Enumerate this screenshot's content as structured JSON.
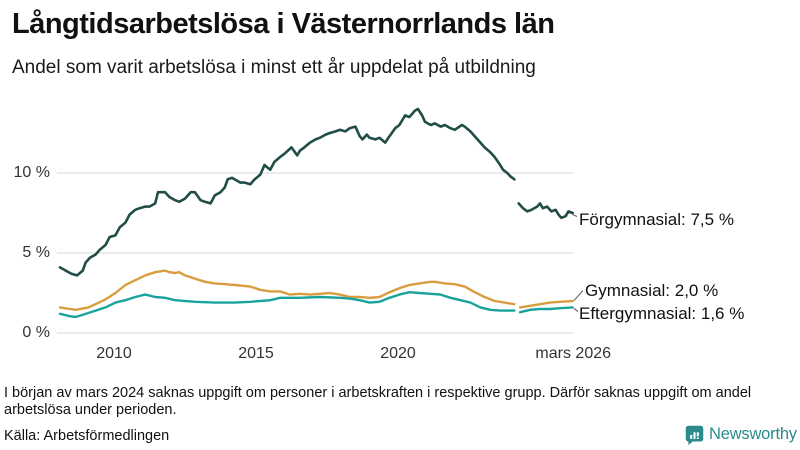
{
  "header": {
    "title": "Långtidsarbetslösa i Västernorrlands län",
    "subtitle": "Andel som varit arbetslösa i minst ett år uppdelat på utbildning"
  },
  "chart_data": {
    "type": "line",
    "title": "Långtidsarbetslösa i Västernorrlands län",
    "subtitle": "Andel som varit arbetslösa i minst ett år uppdelat på utbildning",
    "unit": "%",
    "x_axis": {
      "ticks": [
        {
          "label": "2010",
          "year": 2010.0
        },
        {
          "label": "2015",
          "year": 2015.0
        },
        {
          "label": "2020",
          "year": 2020.0
        },
        {
          "label": "mars 2026",
          "year": 2026.17
        }
      ],
      "range_years": [
        2008.0,
        2026.2
      ]
    },
    "y_axis": {
      "ticks": [
        {
          "label": "10 %",
          "value": 10
        },
        {
          "label": "5 %",
          "value": 5
        },
        {
          "label": "0 %",
          "value": 0
        }
      ],
      "range": [
        0,
        14.6
      ],
      "grid": true
    },
    "data_gap": "early 2024 (missing data)",
    "series": [
      {
        "name": "Förgymnasial",
        "label": "Förgymnasial: 7,5 %",
        "end_value": "7,5 %",
        "color": "#214d48",
        "stroke_width": 2.6,
        "segments": [
          [
            [
              2008.1,
              4.1
            ],
            [
              2008.3,
              3.9
            ],
            [
              2008.5,
              3.7
            ],
            [
              2008.7,
              3.6
            ],
            [
              2008.9,
              3.9
            ],
            [
              2009.0,
              4.4
            ],
            [
              2009.15,
              4.7
            ],
            [
              2009.35,
              4.9
            ],
            [
              2009.5,
              5.2
            ],
            [
              2009.7,
              5.5
            ],
            [
              2009.85,
              6.0
            ],
            [
              2010.05,
              6.1
            ],
            [
              2010.2,
              6.6
            ],
            [
              2010.4,
              6.9
            ],
            [
              2010.55,
              7.4
            ],
            [
              2010.75,
              7.7
            ],
            [
              2010.9,
              7.8
            ],
            [
              2011.1,
              7.9
            ],
            [
              2011.25,
              7.9
            ],
            [
              2011.45,
              8.1
            ],
            [
              2011.55,
              8.8
            ],
            [
              2011.8,
              8.8
            ],
            [
              2011.95,
              8.5
            ],
            [
              2012.15,
              8.3
            ],
            [
              2012.3,
              8.2
            ],
            [
              2012.5,
              8.4
            ],
            [
              2012.7,
              8.8
            ],
            [
              2012.85,
              8.8
            ],
            [
              2013.05,
              8.3
            ],
            [
              2013.2,
              8.2
            ],
            [
              2013.4,
              8.1
            ],
            [
              2013.55,
              8.6
            ],
            [
              2013.75,
              8.8
            ],
            [
              2013.9,
              9.1
            ],
            [
              2014.0,
              9.6
            ],
            [
              2014.15,
              9.7
            ],
            [
              2014.45,
              9.4
            ],
            [
              2014.6,
              9.4
            ],
            [
              2014.8,
              9.3
            ],
            [
              2014.95,
              9.6
            ],
            [
              2015.15,
              9.9
            ],
            [
              2015.3,
              10.5
            ],
            [
              2015.5,
              10.2
            ],
            [
              2015.65,
              10.7
            ],
            [
              2015.85,
              11.0
            ],
            [
              2016.0,
              11.2
            ],
            [
              2016.25,
              11.6
            ],
            [
              2016.45,
              11.1
            ],
            [
              2016.55,
              11.4
            ],
            [
              2016.7,
              11.6
            ],
            [
              2016.9,
              11.9
            ],
            [
              2017.1,
              12.1
            ],
            [
              2017.25,
              12.2
            ],
            [
              2017.45,
              12.4
            ],
            [
              2017.6,
              12.5
            ],
            [
              2017.8,
              12.6
            ],
            [
              2017.95,
              12.7
            ],
            [
              2018.15,
              12.6
            ],
            [
              2018.3,
              12.8
            ],
            [
              2018.5,
              12.9
            ],
            [
              2018.65,
              12.3
            ],
            [
              2018.75,
              12.1
            ],
            [
              2018.9,
              12.4
            ],
            [
              2019.0,
              12.2
            ],
            [
              2019.2,
              12.1
            ],
            [
              2019.35,
              12.2
            ],
            [
              2019.55,
              11.9
            ],
            [
              2019.7,
              12.3
            ],
            [
              2019.9,
              12.8
            ],
            [
              2020.05,
              13.0
            ],
            [
              2020.25,
              13.6
            ],
            [
              2020.4,
              13.5
            ],
            [
              2020.6,
              13.9
            ],
            [
              2020.7,
              14.0
            ],
            [
              2020.85,
              13.6
            ],
            [
              2020.95,
              13.2
            ],
            [
              2021.15,
              13.0
            ],
            [
              2021.3,
              13.1
            ],
            [
              2021.5,
              12.9
            ],
            [
              2021.65,
              13.0
            ],
            [
              2021.85,
              12.8
            ],
            [
              2022.0,
              12.7
            ],
            [
              2022.25,
              13.0
            ],
            [
              2022.35,
              12.9
            ],
            [
              2022.55,
              12.6
            ],
            [
              2022.7,
              12.3
            ],
            [
              2022.9,
              11.9
            ],
            [
              2023.05,
              11.6
            ],
            [
              2023.25,
              11.3
            ],
            [
              2023.4,
              11.0
            ],
            [
              2023.6,
              10.5
            ],
            [
              2023.7,
              10.2
            ],
            [
              2023.85,
              10.0
            ],
            [
              2023.95,
              9.8
            ],
            [
              2024.1,
              9.6
            ]
          ],
          [
            [
              2024.25,
              8.1
            ],
            [
              2024.4,
              7.8
            ],
            [
              2024.55,
              7.6
            ],
            [
              2024.7,
              7.7
            ],
            [
              2024.9,
              7.9
            ],
            [
              2025.0,
              8.1
            ],
            [
              2025.1,
              7.8
            ],
            [
              2025.25,
              7.9
            ],
            [
              2025.4,
              7.6
            ],
            [
              2025.55,
              7.7
            ],
            [
              2025.65,
              7.4
            ],
            [
              2025.75,
              7.2
            ],
            [
              2025.9,
              7.3
            ],
            [
              2026.0,
              7.6
            ],
            [
              2026.15,
              7.5
            ]
          ]
        ]
      },
      {
        "name": "Gymnasial",
        "label": "Gymnasial: 2,0 %",
        "end_value": "2,0 %",
        "color": "#d99c3e",
        "stroke_width": 2.4,
        "segments": [
          [
            [
              2008.1,
              1.6
            ],
            [
              2008.45,
              1.5
            ],
            [
              2008.65,
              1.45
            ],
            [
              2009.1,
              1.6
            ],
            [
              2009.35,
              1.8
            ],
            [
              2009.7,
              2.1
            ],
            [
              2010.05,
              2.5
            ],
            [
              2010.4,
              3.0
            ],
            [
              2010.75,
              3.3
            ],
            [
              2011.1,
              3.6
            ],
            [
              2011.45,
              3.8
            ],
            [
              2011.8,
              3.9
            ],
            [
              2011.95,
              3.8
            ],
            [
              2012.15,
              3.75
            ],
            [
              2012.3,
              3.8
            ],
            [
              2012.5,
              3.6
            ],
            [
              2012.85,
              3.4
            ],
            [
              2013.2,
              3.2
            ],
            [
              2013.55,
              3.1
            ],
            [
              2013.9,
              3.05
            ],
            [
              2014.25,
              3.0
            ],
            [
              2014.8,
              2.9
            ],
            [
              2015.15,
              2.7
            ],
            [
              2015.5,
              2.6
            ],
            [
              2015.85,
              2.6
            ],
            [
              2016.2,
              2.4
            ],
            [
              2016.55,
              2.45
            ],
            [
              2016.9,
              2.4
            ],
            [
              2017.25,
              2.45
            ],
            [
              2017.6,
              2.5
            ],
            [
              2017.95,
              2.4
            ],
            [
              2018.3,
              2.25
            ],
            [
              2018.65,
              2.25
            ],
            [
              2019.0,
              2.2
            ],
            [
              2019.35,
              2.25
            ],
            [
              2019.7,
              2.55
            ],
            [
              2020.05,
              2.8
            ],
            [
              2020.4,
              3.0
            ],
            [
              2020.75,
              3.1
            ],
            [
              2021.15,
              3.2
            ],
            [
              2021.3,
              3.2
            ],
            [
              2021.65,
              3.1
            ],
            [
              2022.0,
              3.05
            ],
            [
              2022.35,
              2.9
            ],
            [
              2022.7,
              2.55
            ],
            [
              2023.05,
              2.25
            ],
            [
              2023.4,
              2.0
            ],
            [
              2023.75,
              1.9
            ],
            [
              2024.1,
              1.8
            ]
          ],
          [
            [
              2024.3,
              1.6
            ],
            [
              2024.65,
              1.7
            ],
            [
              2025.0,
              1.8
            ],
            [
              2025.35,
              1.9
            ],
            [
              2025.7,
              1.95
            ],
            [
              2026.15,
              2.0
            ]
          ]
        ]
      },
      {
        "name": "Eftergymnasial",
        "label": "Eftergymnasial: 1,6 %",
        "end_value": "1,6 %",
        "color": "#1aa39c",
        "stroke_width": 2.4,
        "segments": [
          [
            [
              2008.1,
              1.2
            ],
            [
              2008.45,
              1.05
            ],
            [
              2008.65,
              1.0
            ],
            [
              2009.1,
              1.25
            ],
            [
              2009.35,
              1.4
            ],
            [
              2009.7,
              1.6
            ],
            [
              2010.05,
              1.9
            ],
            [
              2010.4,
              2.05
            ],
            [
              2010.75,
              2.25
            ],
            [
              2011.1,
              2.4
            ],
            [
              2011.45,
              2.25
            ],
            [
              2011.8,
              2.2
            ],
            [
              2012.15,
              2.05
            ],
            [
              2012.85,
              1.95
            ],
            [
              2013.55,
              1.9
            ],
            [
              2014.25,
              1.9
            ],
            [
              2014.8,
              1.95
            ],
            [
              2015.5,
              2.05
            ],
            [
              2015.85,
              2.2
            ],
            [
              2016.55,
              2.2
            ],
            [
              2017.25,
              2.25
            ],
            [
              2017.95,
              2.2
            ],
            [
              2018.3,
              2.15
            ],
            [
              2018.65,
              2.05
            ],
            [
              2019.0,
              1.9
            ],
            [
              2019.35,
              1.95
            ],
            [
              2019.7,
              2.2
            ],
            [
              2020.05,
              2.4
            ],
            [
              2020.4,
              2.55
            ],
            [
              2020.75,
              2.5
            ],
            [
              2021.15,
              2.45
            ],
            [
              2021.5,
              2.4
            ],
            [
              2021.85,
              2.2
            ],
            [
              2022.2,
              2.05
            ],
            [
              2022.55,
              1.9
            ],
            [
              2022.9,
              1.6
            ],
            [
              2023.25,
              1.45
            ],
            [
              2023.6,
              1.4
            ],
            [
              2023.95,
              1.4
            ],
            [
              2024.1,
              1.4
            ]
          ],
          [
            [
              2024.3,
              1.3
            ],
            [
              2024.65,
              1.45
            ],
            [
              2025.0,
              1.5
            ],
            [
              2025.35,
              1.5
            ],
            [
              2025.7,
              1.55
            ],
            [
              2026.15,
              1.6
            ]
          ]
        ]
      }
    ],
    "legend_position": "end-of-line labels, right side"
  },
  "footer": {
    "note": "I början av mars 2024 saknas uppgift om personer i arbetskraften i respektive grupp. Därför saknas uppgift om andel arbetslösa under perioden.",
    "source": "Källa: Arbetsförmedlingen",
    "logo_text": "Newsworthy"
  },
  "colors": {
    "background": "#ffffff",
    "title_text": "#111111",
    "tick_text": "#333333",
    "gridline": "#e0e0e0",
    "connector": "#666666",
    "series_forgymnasial": "#214d48",
    "series_gymnasial": "#d99c3e",
    "series_eftergymnasial": "#1aa39c",
    "logo_teal": "#2a8b8a"
  }
}
